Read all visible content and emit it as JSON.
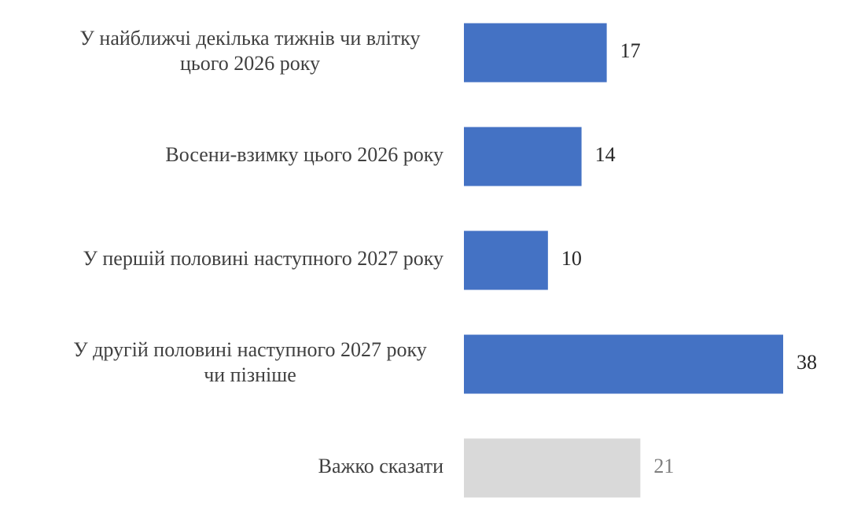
{
  "chart_data": {
    "type": "bar",
    "orientation": "horizontal",
    "categories": [
      [
        "У найближчі декілька тижнів чи влітку",
        "цього 2026 року"
      ],
      [
        "Восени-взимку цього 2026 року"
      ],
      [
        "У першій половині наступного 2027 року"
      ],
      [
        "У другій половині наступного 2027 року",
        "чи пізніше"
      ],
      [
        "Важко сказати"
      ]
    ],
    "values": [
      17,
      14,
      10,
      38,
      21
    ],
    "value_labels": [
      "17",
      "14",
      "10",
      "38",
      "21"
    ],
    "bar_colors": [
      "#4472c4",
      "#4472c4",
      "#4472c4",
      "#4472c4",
      "#d9d9d9"
    ],
    "value_label_colors": [
      "#262626",
      "#262626",
      "#262626",
      "#262626",
      "#7f7f7f"
    ],
    "xlim": [
      0,
      38
    ],
    "grid": false,
    "legend": "none"
  }
}
